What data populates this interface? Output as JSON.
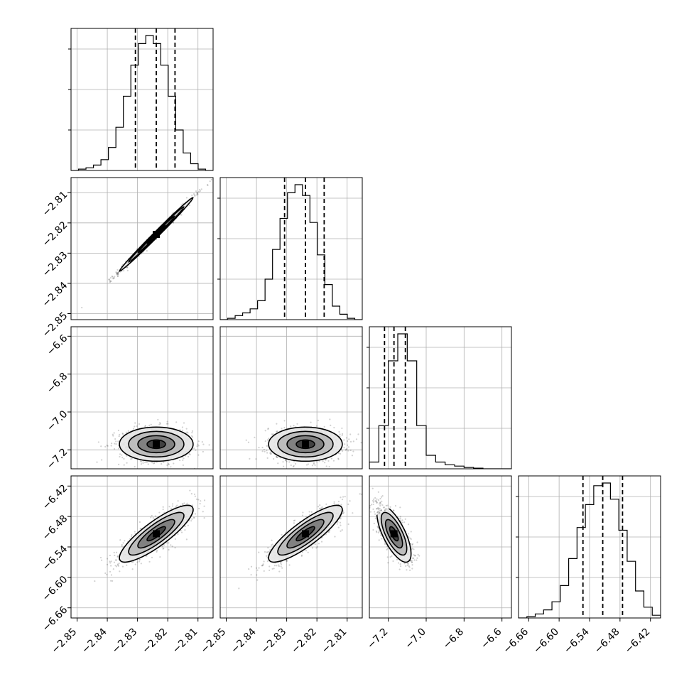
{
  "chart_data": {
    "type": "corner",
    "description_type": "histogram+scatter/contour",
    "parameters": [
      {
        "index": 0,
        "label": "",
        "range": [
          -2.852,
          -2.805
        ],
        "ticks": [
          -2.85,
          -2.84,
          -2.83,
          -2.82,
          -2.81
        ],
        "tick_labels": [
          "−2.85",
          "−2.84",
          "−2.83",
          "−2.82",
          "−2.81"
        ],
        "quantiles": [
          -2.8307,
          -2.8238,
          -2.8176
        ],
        "hist_bins": [
          0.0,
          0.01,
          0.02,
          0.04,
          0.08,
          0.17,
          0.32,
          0.55,
          0.78,
          0.94,
          1.0,
          0.94,
          0.78,
          0.55,
          0.3,
          0.13,
          0.05,
          0.01,
          0.0
        ]
      },
      {
        "index": 1,
        "label": "",
        "range": [
          -2.852,
          -2.805
        ],
        "ticks": [
          -2.85,
          -2.84,
          -2.83,
          -2.82,
          -2.81
        ],
        "tick_labels": [
          "−2.85",
          "−2.84",
          "−2.83",
          "−2.82",
          "−2.81"
        ],
        "quantiles": [
          -2.8307,
          -2.8238,
          -2.8176
        ],
        "hist_bins": [
          0.0,
          0.01,
          0.03,
          0.05,
          0.08,
          0.14,
          0.3,
          0.52,
          0.75,
          0.94,
          1.0,
          0.92,
          0.72,
          0.48,
          0.26,
          0.1,
          0.04,
          0.01,
          0.0
        ]
      },
      {
        "index": 2,
        "label": "",
        "range": [
          -7.3,
          -6.55
        ],
        "ticks": [
          -7.2,
          -7.0,
          -6.8,
          -6.6
        ],
        "tick_labels": [
          "−7.2",
          "−7.0",
          "−6.8",
          "−6.6"
        ],
        "quantiles": [
          -7.22,
          -7.17,
          -7.11
        ],
        "hist_bins": [
          0.05,
          0.32,
          0.8,
          1.0,
          0.8,
          0.32,
          0.1,
          0.05,
          0.03,
          0.02,
          0.01,
          0.005,
          0.0,
          0.0,
          0.0
        ]
      },
      {
        "index": 3,
        "label": "",
        "range": [
          -6.68,
          -6.4
        ],
        "ticks": [
          -6.66,
          -6.6,
          -6.54,
          -6.48,
          -6.42
        ],
        "tick_labels": [
          "−6.66",
          "−6.60",
          "−6.54",
          "−6.48",
          "−6.42"
        ],
        "quantiles": [
          -6.553,
          -6.514,
          -6.475
        ],
        "hist_bins": [
          0.0,
          0.01,
          0.03,
          0.06,
          0.12,
          0.24,
          0.44,
          0.67,
          0.84,
          0.98,
          1.0,
          0.88,
          0.65,
          0.42,
          0.2,
          0.08,
          0.02
        ]
      }
    ],
    "pairs": [
      {
        "x": 0,
        "y": 1,
        "mean": [
          -2.8238,
          -2.8238
        ],
        "std": [
          0.0061,
          0.0061
        ],
        "corr": 0.995
      },
      {
        "x": 0,
        "y": 2,
        "mean": [
          -2.8238,
          -7.17
        ],
        "std": [
          0.0061,
          0.045
        ],
        "corr": 0.0
      },
      {
        "x": 1,
        "y": 2,
        "mean": [
          -2.8238,
          -7.17
        ],
        "std": [
          0.0061,
          0.045
        ],
        "corr": 0.0
      },
      {
        "x": 0,
        "y": 3,
        "mean": [
          -2.8238,
          -6.514
        ],
        "std": [
          0.0061,
          0.028
        ],
        "corr": 0.85
      },
      {
        "x": 1,
        "y": 3,
        "mean": [
          -2.8238,
          -6.514
        ],
        "std": [
          0.0061,
          0.028
        ],
        "corr": 0.85
      },
      {
        "x": 2,
        "y": 3,
        "mean": [
          -7.17,
          -6.514
        ],
        "std": [
          0.045,
          0.028
        ],
        "corr": -0.7
      }
    ],
    "contour_levels_sigma": [
      0.5,
      1.0,
      1.5,
      2.0
    ],
    "grid": true
  }
}
